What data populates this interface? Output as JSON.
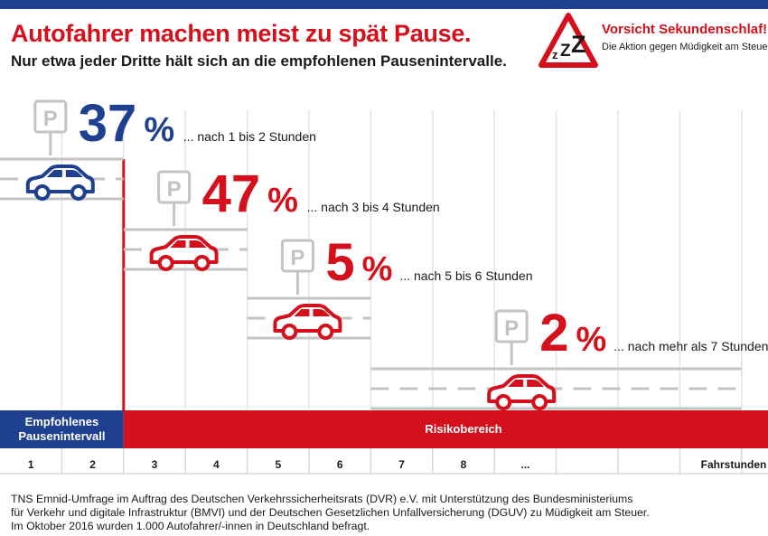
{
  "header": {
    "title": "Autofahrer machen meist zu spät Pause.",
    "subtitle": "Nur etwa jeder Dritte hält sich an die empfohlenen Pausenintervalle."
  },
  "brand": {
    "title": "Vorsicht Sekundenschlaf!",
    "subtitle": "Die Aktion gegen Müdigkeit am Steuer.",
    "logo_icon": "zzz-warning-triangle-icon"
  },
  "chart_data": {
    "type": "bar",
    "categories": [
      "nach 1 bis 2 Stunden",
      "nach 3 bis 4 Stunden",
      "nach 5 bis 6 Stunden",
      "nach mehr als 7 Stunden"
    ],
    "values": [
      37,
      47,
      5,
      2
    ],
    "value_labels": [
      "37 %",
      "47 %",
      "5 %",
      "2 %"
    ],
    "notes": [
      "... nach 1 bis 2 Stunden",
      "... nach 3 bis 4 Stunden",
      "... nach 5 bis 6 Stunden",
      "... nach mehr als 7 Stunden"
    ],
    "bar_end_hours": [
      2,
      4,
      6,
      12
    ],
    "colors": [
      "#1f3f8f",
      "#d4101c",
      "#d4101c",
      "#d4101c"
    ],
    "parking_sign_label": "P",
    "x_ticks": [
      "1",
      "2",
      "3",
      "4",
      "5",
      "6",
      "7",
      "8",
      "..."
    ],
    "xlabel": "Fahrstunden",
    "bands": [
      {
        "label_lines": [
          "Empfohlenes",
          "Pausenintervall"
        ],
        "from_hour": 0,
        "to_hour": 2,
        "color": "#1f3f8f"
      },
      {
        "label_lines": [
          "Risikobereich"
        ],
        "from_hour": 2,
        "to_hour": 12.5,
        "color": "#d4101c"
      }
    ],
    "threshold_hours": 2,
    "grid": true
  },
  "footnote": [
    "TNS Emnid-Umfrage im Auftrag des Deutschen Verkehrssicherheitsrats (DVR) e.V. mit Unterstützung des Bundesministeriums",
    "für Verkehr und digitale Infrastruktur (BMVI) und der Deutschen Gesetzlichen Unfallversicherung (DGUV) zu Müdigkeit am Steuer.",
    "Im Oktober 2016 wurden 1.000 Autofahrer/-innen in Deutschland befragt."
  ]
}
